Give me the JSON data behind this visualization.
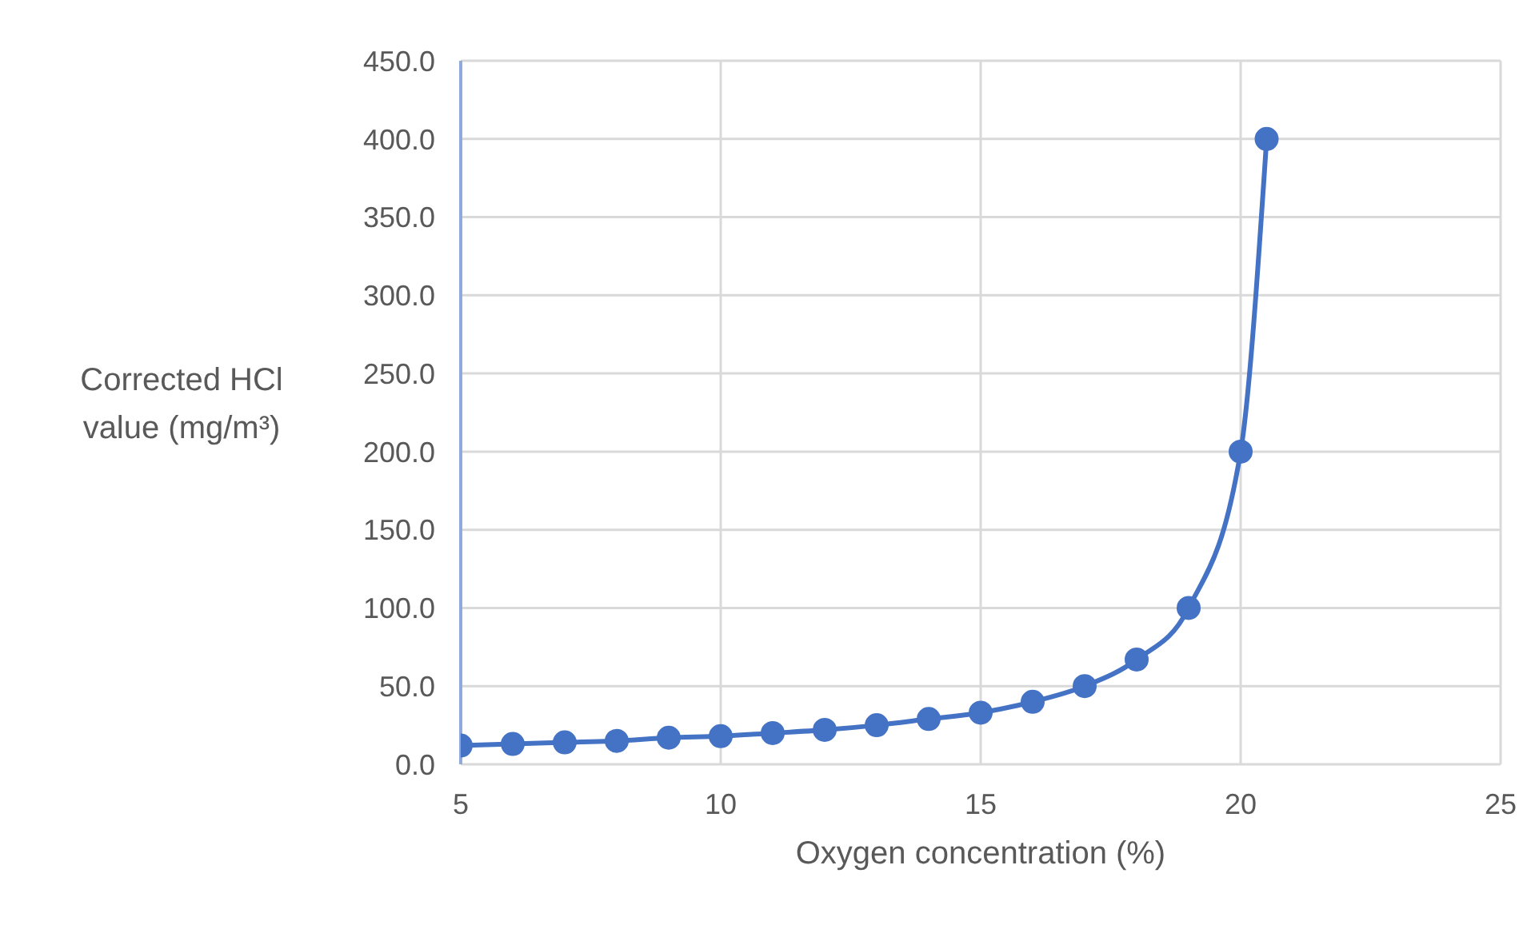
{
  "chart_data": {
    "type": "line",
    "xlabel": "Oxygen concentration (%)",
    "ylabel": "Corrected HCl value (mg/m³)",
    "x": [
      5,
      6,
      7,
      8,
      9,
      10,
      11,
      12,
      13,
      14,
      15,
      16,
      17,
      18,
      19,
      20,
      20.5
    ],
    "series": [
      {
        "color": "#4472c4",
        "values": [
          12,
          13,
          14,
          15,
          17,
          18,
          20,
          22,
          25,
          29,
          33,
          40,
          50,
          67,
          100,
          200,
          400
        ]
      }
    ],
    "xlim": [
      5,
      25
    ],
    "xticks": [
      5,
      10,
      15,
      20,
      25
    ],
    "ylim": [
      0,
      450
    ],
    "yticks": [
      {
        "value": 0,
        "label": "0.0"
      },
      {
        "value": 50,
        "label": "50.0"
      },
      {
        "value": 100,
        "label": "100.0"
      },
      {
        "value": 150,
        "label": "150.0"
      },
      {
        "value": 200,
        "label": "200.0"
      },
      {
        "value": 250,
        "label": "250.0"
      },
      {
        "value": 300,
        "label": "300.0"
      },
      {
        "value": 350,
        "label": "350.0"
      },
      {
        "value": 400,
        "label": "400.0"
      },
      {
        "value": 450,
        "label": "450.0"
      }
    ],
    "grid": true,
    "marker": "circle",
    "line_style": "solid"
  }
}
